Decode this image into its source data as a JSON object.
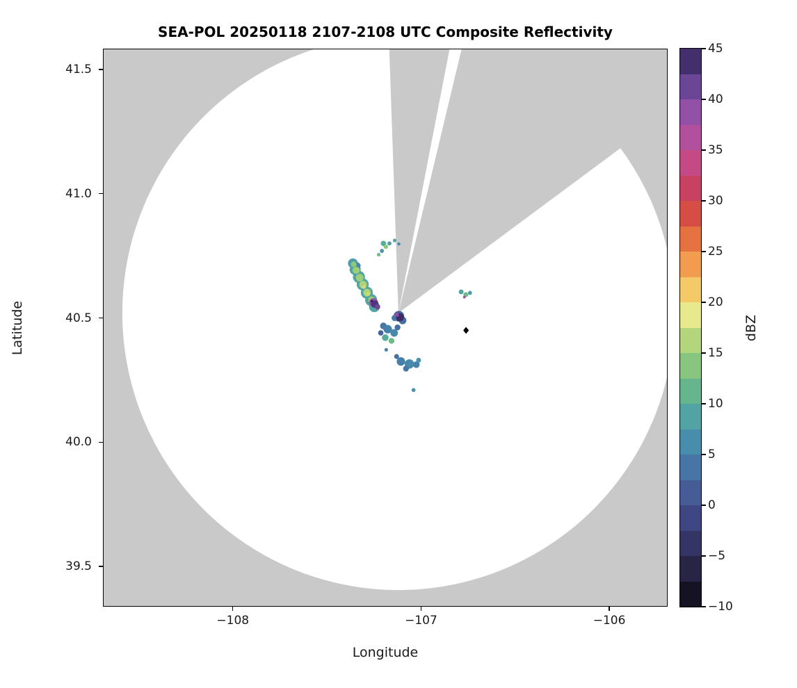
{
  "chart_data": {
    "type": "heatmap",
    "subtype": "radar-ppi-composite",
    "title": "SEA-POL 20250118 2107-2108 UTC Composite Reflectivity",
    "xlabel": "Longitude",
    "ylabel": "Latitude",
    "xlim": [
      -108.69,
      -105.69
    ],
    "ylim": [
      39.338,
      41.584
    ],
    "xticks": [
      -108,
      -107,
      -106
    ],
    "xtick_labels": [
      "−108",
      "−107",
      "−106"
    ],
    "yticks": [
      39.5,
      40.0,
      40.5,
      41.0,
      41.5
    ],
    "ytick_labels": [
      "39.5",
      "40.0",
      "40.5",
      "41.0",
      "41.5"
    ],
    "grid": false,
    "legend_position": "none",
    "background_color": "#c9c9c9",
    "coverage_color": "#ffffff",
    "radar": {
      "lon": -107.12,
      "lat": 40.52,
      "range_km": 124
    },
    "blocked_sectors_deg_from_north": [
      [
        -2,
        11
      ],
      [
        13.5,
        53.5
      ]
    ],
    "marker": {
      "lon": -106.761,
      "lat": 40.45,
      "shape": "diamond",
      "color": "#000000"
    },
    "colorbar": {
      "label": "dBZ",
      "min": -10,
      "max": 45,
      "step": 2.5,
      "ticks": [
        45,
        40,
        35,
        30,
        25,
        20,
        15,
        10,
        5,
        0,
        -5,
        -10
      ],
      "tick_labels": [
        "45",
        "40",
        "35",
        "30",
        "25",
        "20",
        "15",
        "10",
        "5",
        "0",
        "−5",
        "−10"
      ],
      "colormap": "ChaseSpectral-like",
      "colormap_stops": [
        [
          -10,
          "#0b0a10"
        ],
        [
          -7.5,
          "#1f1c36"
        ],
        [
          -5,
          "#2e2b53"
        ],
        [
          -2.5,
          "#3a3e76"
        ],
        [
          0,
          "#43508e"
        ],
        [
          2.5,
          "#47689e"
        ],
        [
          5,
          "#4681ac"
        ],
        [
          7.5,
          "#4c98ad"
        ],
        [
          10,
          "#57ad99"
        ],
        [
          12.5,
          "#74bd84"
        ],
        [
          15,
          "#9ccd78"
        ],
        [
          17.5,
          "#c9dc7e"
        ],
        [
          19,
          "#eeeb90"
        ],
        [
          21,
          "#f4cf6c"
        ],
        [
          23,
          "#f2a854"
        ],
        [
          25,
          "#ee8747"
        ],
        [
          27.5,
          "#e05c3a"
        ],
        [
          30,
          "#cb3e50"
        ],
        [
          32.5,
          "#c64373"
        ],
        [
          35,
          "#bf5095"
        ],
        [
          37.5,
          "#a650a5"
        ],
        [
          40,
          "#7e4fa7"
        ],
        [
          42.5,
          "#583c86"
        ],
        [
          45,
          "#2e2150"
        ]
      ]
    },
    "echo_fields": [
      "lon",
      "lat",
      "dbz",
      "radius_km"
    ],
    "echoes": [
      [
        -107.362,
        40.72,
        8,
        2.2
      ],
      [
        -107.35,
        40.695,
        9,
        2.5
      ],
      [
        -107.33,
        40.665,
        9,
        2.7
      ],
      [
        -107.31,
        40.635,
        9,
        2.7
      ],
      [
        -107.288,
        40.602,
        9,
        2.7
      ],
      [
        -107.265,
        40.572,
        9,
        2.7
      ],
      [
        -107.248,
        40.545,
        9,
        2.4
      ],
      [
        -107.34,
        40.71,
        6,
        1.6
      ],
      [
        -107.358,
        40.716,
        14,
        1.3
      ],
      [
        -107.345,
        40.692,
        15,
        1.6
      ],
      [
        -107.326,
        40.662,
        15,
        1.7
      ],
      [
        -107.308,
        40.634,
        16,
        1.7
      ],
      [
        -107.287,
        40.602,
        16,
        1.7
      ],
      [
        -107.263,
        40.573,
        15,
        1.5
      ],
      [
        -107.304,
        40.625,
        17.5,
        0.9
      ],
      [
        -107.283,
        40.597,
        17.5,
        0.9
      ],
      [
        -107.2,
        40.8,
        10,
        1.2
      ],
      [
        -107.187,
        40.787,
        14,
        1.0
      ],
      [
        -107.168,
        40.8,
        8,
        0.9
      ],
      [
        -107.14,
        40.812,
        9,
        0.8
      ],
      [
        -107.118,
        40.798,
        6,
        0.7
      ],
      [
        -107.208,
        40.77,
        7,
        0.9
      ],
      [
        -107.225,
        40.755,
        12,
        0.8
      ],
      [
        -107.252,
        40.562,
        38,
        2.0
      ],
      [
        -107.246,
        40.556,
        43,
        1.7
      ],
      [
        -107.231,
        40.545,
        41,
        1.2
      ],
      [
        -107.262,
        40.568,
        45,
        0.5
      ],
      [
        -107.118,
        40.507,
        2,
        2.4
      ],
      [
        -107.098,
        40.49,
        3,
        1.7
      ],
      [
        -107.14,
        40.5,
        4,
        1.4
      ],
      [
        -107.112,
        40.503,
        44,
        1.8
      ],
      [
        -107.128,
        40.513,
        39,
        0.9
      ],
      [
        -107.2,
        40.468,
        4,
        1.5
      ],
      [
        -107.177,
        40.455,
        5,
        1.9
      ],
      [
        -107.143,
        40.44,
        6,
        1.7
      ],
      [
        -107.19,
        40.421,
        10,
        1.5
      ],
      [
        -107.157,
        40.408,
        12,
        1.3
      ],
      [
        -107.214,
        40.44,
        2,
        1.2
      ],
      [
        -107.125,
        40.462,
        3,
        1.3
      ],
      [
        -107.185,
        40.372,
        5,
        0.8
      ],
      [
        -107.13,
        40.345,
        3,
        1.1
      ],
      [
        -107.107,
        40.325,
        5,
        1.9
      ],
      [
        -107.062,
        40.315,
        6,
        2.1
      ],
      [
        -107.025,
        40.312,
        5,
        1.5
      ],
      [
        -107.08,
        40.296,
        4,
        1.3
      ],
      [
        -107.013,
        40.33,
        7,
        1.1
      ],
      [
        -107.04,
        40.21,
        7,
        0.9
      ],
      [
        -106.787,
        40.605,
        9,
        1.1
      ],
      [
        -106.762,
        40.594,
        12,
        1.1
      ],
      [
        -106.74,
        40.601,
        8,
        0.9
      ],
      [
        -106.77,
        40.584,
        38,
        0.6
      ]
    ]
  }
}
